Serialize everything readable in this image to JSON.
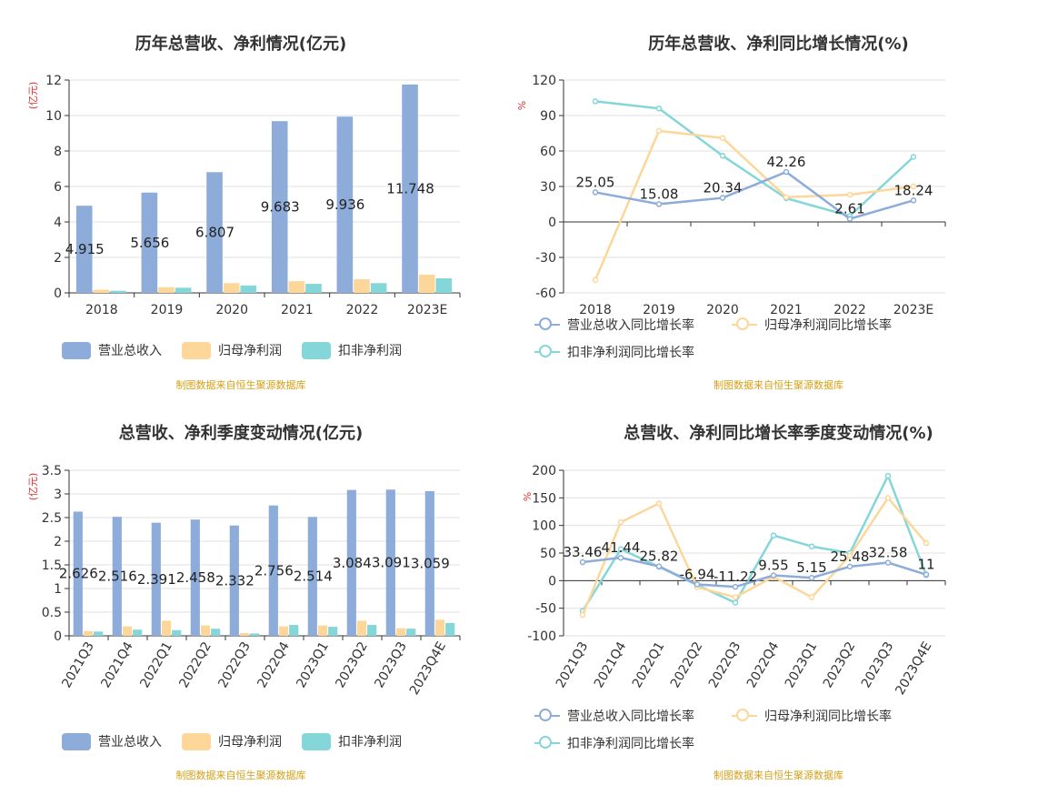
{
  "source_note": "制图数据来自恒生聚源数据库",
  "chart_data": [
    {
      "type": "bar",
      "title": "历年总营收、净利情况(亿元)",
      "ylabel": "(亿元)",
      "ylim": [
        0,
        12
      ],
      "yticks": [
        0,
        2,
        4,
        6,
        8,
        10,
        12
      ],
      "categories": [
        "2018",
        "2019",
        "2020",
        "2021",
        "2022",
        "2023E"
      ],
      "series": [
        {
          "name": "营业总收入",
          "color": "#8eacd9",
          "values": [
            4.915,
            5.656,
            6.807,
            9.683,
            9.936,
            11.748
          ],
          "labels": [
            "4.915",
            "5.656",
            "6.807",
            "9.683",
            "9.936",
            "11.748"
          ]
        },
        {
          "name": "归母净利润",
          "color": "#fdd79a",
          "values": [
            0.18,
            0.32,
            0.55,
            0.66,
            0.77,
            1.03
          ]
        },
        {
          "name": "扣非净利润",
          "color": "#84d6d8",
          "values": [
            0.12,
            0.29,
            0.42,
            0.51,
            0.55,
            0.82
          ]
        }
      ],
      "legend_position": "bottom-left",
      "grid": true
    },
    {
      "type": "line",
      "title": "历年总营收、净利同比增长情况(%)",
      "ylabel": "%",
      "ylim": [
        -60,
        120
      ],
      "yticks": [
        -60,
        -30,
        0,
        30,
        60,
        90,
        120
      ],
      "categories": [
        "2018",
        "2019",
        "2020",
        "2021",
        "2022",
        "2023E"
      ],
      "series": [
        {
          "name": "营业总收入同比增长率",
          "color": "#8eacd9",
          "values": [
            25.05,
            15.08,
            20.34,
            42.26,
            2.61,
            18.24
          ],
          "labels": [
            "25.05",
            "15.08",
            "20.34",
            "42.26",
            "2.61",
            "18.24"
          ]
        },
        {
          "name": "归母净利润同比增长率",
          "color": "#fdd79a",
          "values": [
            -49,
            77,
            71,
            21,
            23,
            30
          ]
        },
        {
          "name": "扣非净利润同比增长率",
          "color": "#84d6d8",
          "values": [
            102,
            96,
            56,
            20,
            5,
            55
          ]
        }
      ],
      "legend_position": "bottom-left",
      "grid": true
    },
    {
      "type": "bar",
      "title": "总营收、净利季度变动情况(亿元)",
      "ylabel": "(亿元)",
      "ylim": [
        0,
        3.5
      ],
      "yticks": [
        0,
        0.5,
        1,
        1.5,
        2,
        2.5,
        3,
        3.5
      ],
      "categories": [
        "2021Q3",
        "2021Q4",
        "2022Q1",
        "2022Q2",
        "2022Q3",
        "2022Q4",
        "2023Q1",
        "2023Q2",
        "2023Q3",
        "2023Q4E"
      ],
      "series": [
        {
          "name": "营业总收入",
          "color": "#8eacd9",
          "values": [
            2.626,
            2.516,
            2.391,
            2.458,
            2.332,
            2.756,
            2.514,
            3.084,
            3.091,
            3.059
          ],
          "labels": [
            "2.626",
            "2.516",
            "2.391",
            "2.458",
            "2.332",
            "2.756",
            "2.514",
            "3.084",
            "3.091",
            "3.059"
          ]
        },
        {
          "name": "归母净利润",
          "color": "#fdd79a",
          "values": [
            0.1,
            0.2,
            0.32,
            0.22,
            0.06,
            0.2,
            0.22,
            0.32,
            0.16,
            0.34
          ]
        },
        {
          "name": "扣非净利润",
          "color": "#84d6d8",
          "values": [
            0.09,
            0.13,
            0.12,
            0.15,
            0.05,
            0.23,
            0.19,
            0.23,
            0.15,
            0.27
          ]
        }
      ],
      "legend_position": "bottom-left",
      "grid": true
    },
    {
      "type": "line",
      "title": "总营收、净利同比增长率季度变动情况(%)",
      "ylabel": "%",
      "ylim": [
        -100,
        200
      ],
      "yticks": [
        -100,
        -50,
        0,
        50,
        100,
        150,
        200
      ],
      "categories": [
        "2021Q3",
        "2021Q4",
        "2022Q1",
        "2022Q2",
        "2022Q3",
        "2022Q4",
        "2023Q1",
        "2023Q2",
        "2023Q3",
        "2023Q4E"
      ],
      "series": [
        {
          "name": "营业总收入同比增长率",
          "color": "#8eacd9",
          "values": [
            33.46,
            41.44,
            25.82,
            -6.94,
            -11.22,
            9.55,
            5.15,
            25.48,
            32.58,
            11
          ],
          "labels": [
            "33.46",
            "41.44",
            "25.82",
            "-6.94",
            "-11.22",
            "9.55",
            "5.15",
            "25.48",
            "32.58",
            "11"
          ]
        },
        {
          "name": "归母净利润同比增长率",
          "color": "#fdd79a",
          "values": [
            -62,
            106,
            140,
            -12,
            -30,
            7,
            -30,
            45,
            150,
            68
          ]
        },
        {
          "name": "扣非净利润同比增长率",
          "color": "#84d6d8",
          "values": [
            -55,
            57,
            25,
            -8,
            -40,
            82,
            62,
            50,
            190,
            10
          ]
        }
      ],
      "legend_position": "bottom-left",
      "grid": true
    }
  ]
}
